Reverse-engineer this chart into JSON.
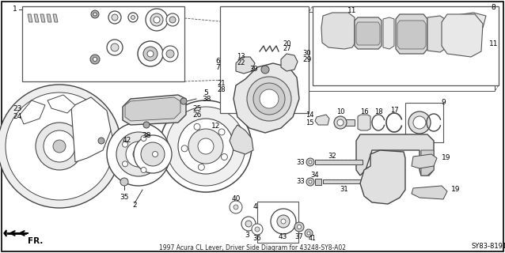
{
  "bg_color": "#ffffff",
  "diagram_label": "SY83-81910A",
  "fr_label": "FR.",
  "fig_width": 6.38,
  "fig_height": 3.2,
  "dpi": 100,
  "title": "1997 Acura CL Lever, Driver Side Diagram for 43248-SY8-A02"
}
